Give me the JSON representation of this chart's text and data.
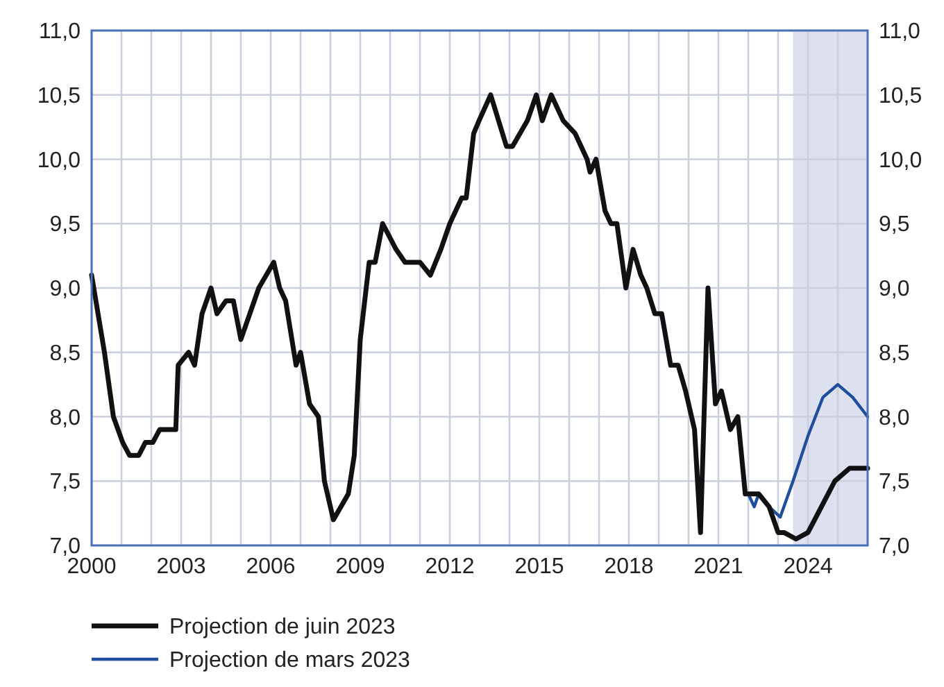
{
  "chart_data": {
    "type": "line",
    "xlim": [
      2000,
      2026
    ],
    "xticks": [
      {
        "value": 2000,
        "label": "2000"
      },
      {
        "value": 2001,
        "label": null
      },
      {
        "value": 2002,
        "label": null
      },
      {
        "value": 2003,
        "label": "2003"
      },
      {
        "value": 2004,
        "label": null
      },
      {
        "value": 2005,
        "label": null
      },
      {
        "value": 2006,
        "label": "2006"
      },
      {
        "value": 2007,
        "label": null
      },
      {
        "value": 2008,
        "label": null
      },
      {
        "value": 2009,
        "label": "2009"
      },
      {
        "value": 2010,
        "label": null
      },
      {
        "value": 2011,
        "label": null
      },
      {
        "value": 2012,
        "label": "2012"
      },
      {
        "value": 2013,
        "label": null
      },
      {
        "value": 2014,
        "label": null
      },
      {
        "value": 2015,
        "label": "2015"
      },
      {
        "value": 2016,
        "label": null
      },
      {
        "value": 2017,
        "label": null
      },
      {
        "value": 2018,
        "label": "2018"
      },
      {
        "value": 2019,
        "label": null
      },
      {
        "value": 2020,
        "label": null
      },
      {
        "value": 2021,
        "label": "2021"
      },
      {
        "value": 2022,
        "label": null
      },
      {
        "value": 2023,
        "label": null
      },
      {
        "value": 2024,
        "label": "2024"
      },
      {
        "value": 2025,
        "label": null
      }
    ],
    "ylim": [
      7,
      11
    ],
    "yticks": [
      {
        "value": 7,
        "label": "7,0"
      },
      {
        "value": 7.5,
        "label": "7,5"
      },
      {
        "value": 8,
        "label": "8,0"
      },
      {
        "value": 8.5,
        "label": "8,5"
      },
      {
        "value": 9,
        "label": "9,0"
      },
      {
        "value": 9.5,
        "label": "9,5"
      },
      {
        "value": 10,
        "label": "10,0"
      },
      {
        "value": 10.5,
        "label": "10,5"
      },
      {
        "value": 11,
        "label": "11,0"
      }
    ],
    "y2lim": [
      7,
      11
    ],
    "y2ticks": [
      {
        "value": 7,
        "label": "7,0"
      },
      {
        "value": 7.5,
        "label": "7,5"
      },
      {
        "value": 8,
        "label": "8,0"
      },
      {
        "value": 8.5,
        "label": "8,5"
      },
      {
        "value": 9,
        "label": "9,0"
      },
      {
        "value": 9.5,
        "label": "9,5"
      },
      {
        "value": 10,
        "label": "10,0"
      },
      {
        "value": 10.5,
        "label": "10,5"
      },
      {
        "value": 11,
        "label": "11,0"
      }
    ],
    "grid": true,
    "legend": "bottom",
    "bands": [
      {
        "axis": "x",
        "from": 2023.5,
        "to": 2026,
        "color": "#dde0ef"
      }
    ],
    "series": [
      {
        "name": "Projection de mars 2023",
        "color": "#1f4e9c",
        "x": [
          2022.0,
          2022.2,
          2022.35,
          2022.7,
          2023.07,
          2023.5,
          2024.0,
          2024.5,
          2025.0,
          2025.5,
          2026.0
        ],
        "values": [
          7.4,
          7.3,
          7.4,
          7.3,
          7.22,
          7.5,
          7.85,
          8.15,
          8.25,
          8.15,
          8.0
        ]
      },
      {
        "name": "Projection de juin 2023",
        "color": "#111111",
        "x": [
          2000.0,
          2000.43,
          2000.73,
          2001.04,
          2001.27,
          2001.58,
          2001.8,
          2002.05,
          2002.28,
          2002.82,
          2002.9,
          2003.25,
          2003.45,
          2003.7,
          2004.0,
          2004.2,
          2004.5,
          2004.75,
          2005.0,
          2005.3,
          2005.6,
          2006.1,
          2006.3,
          2006.5,
          2006.85,
          2007.0,
          2007.3,
          2007.6,
          2007.8,
          2008.1,
          2008.6,
          2008.8,
          2009.0,
          2009.3,
          2009.5,
          2009.75,
          2010.2,
          2010.5,
          2011.0,
          2011.35,
          2011.7,
          2012.0,
          2012.4,
          2012.55,
          2012.8,
          2012.98,
          2013.37,
          2013.9,
          2014.1,
          2014.6,
          2014.9,
          2015.1,
          2015.4,
          2015.8,
          2016.2,
          2016.6,
          2016.7,
          2016.9,
          2017.2,
          2017.4,
          2017.6,
          2017.9,
          2018.14,
          2018.4,
          2018.6,
          2018.87,
          2019.1,
          2019.4,
          2019.65,
          2019.9,
          2020.2,
          2020.4,
          2020.65,
          2020.9,
          2021.1,
          2021.4,
          2021.65,
          2021.9,
          2022.35,
          2022.7,
          2023.0,
          2023.2,
          2023.6,
          2024.0,
          2024.45,
          2024.9,
          2025.4,
          2026.0
        ],
        "values": [
          9.1,
          8.5,
          8.0,
          7.8,
          7.7,
          7.7,
          7.8,
          7.8,
          7.9,
          7.9,
          8.4,
          8.5,
          8.4,
          8.8,
          9.0,
          8.8,
          8.9,
          8.9,
          8.6,
          8.8,
          9.0,
          9.2,
          9.0,
          8.9,
          8.4,
          8.5,
          8.1,
          8.0,
          7.5,
          7.2,
          7.4,
          7.7,
          8.6,
          9.2,
          9.2,
          9.5,
          9.3,
          9.2,
          9.2,
          9.1,
          9.3,
          9.5,
          9.7,
          9.7,
          10.2,
          10.3,
          10.5,
          10.1,
          10.1,
          10.3,
          10.5,
          10.3,
          10.5,
          10.3,
          10.2,
          10.0,
          9.9,
          10.0,
          9.6,
          9.5,
          9.5,
          9.0,
          9.3,
          9.1,
          9.0,
          8.8,
          8.8,
          8.4,
          8.4,
          8.2,
          7.9,
          7.1,
          9.0,
          8.1,
          8.2,
          7.9,
          8.0,
          7.4,
          7.4,
          7.3,
          7.1,
          7.1,
          7.05,
          7.1,
          7.3,
          7.5,
          7.6,
          7.6
        ]
      }
    ]
  }
}
